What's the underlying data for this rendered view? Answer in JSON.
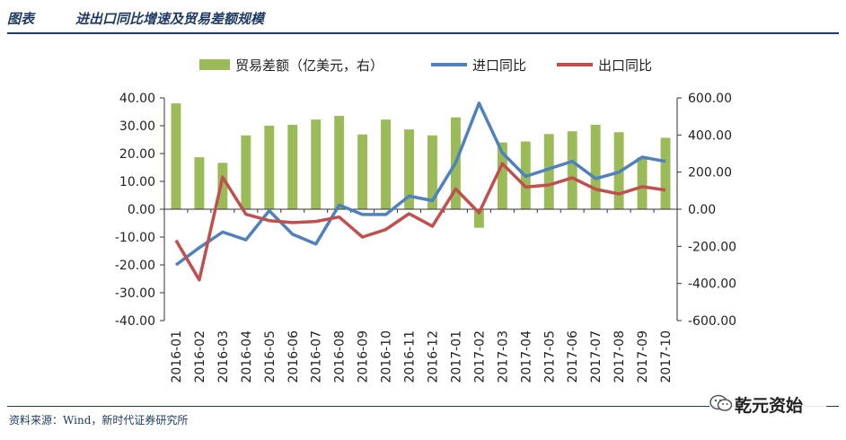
{
  "header": {
    "label": "图表",
    "title": "进出口同比增速及贸易差额规模"
  },
  "footer": {
    "source": "资料来源：Wind，新时代证券研究所"
  },
  "watermark": {
    "text": "乾元资始",
    "icon": "wechat-icon"
  },
  "chart_data": {
    "type": "bar+line",
    "categories": [
      "2016-01",
      "2016-02",
      "2016-03",
      "2016-04",
      "2016-05",
      "2016-06",
      "2016-07",
      "2016-08",
      "2016-09",
      "2016-10",
      "2016-11",
      "2016-12",
      "2017-01",
      "2017-02",
      "2017-03",
      "2017-04",
      "2017-05",
      "2017-06",
      "2017-07",
      "2017-08",
      "2017-09",
      "2017-10"
    ],
    "legend_position": "top",
    "grid": false,
    "left_axis": {
      "range": [
        -40,
        40
      ],
      "ticks": [
        40,
        30,
        20,
        10,
        0,
        -10,
        -20,
        -30,
        -40
      ],
      "tick_labels": [
        "40.00",
        "30.00",
        "20.00",
        "10.00",
        "0.00",
        "-10.00",
        "-20.00",
        "-30.00",
        "-40.00"
      ]
    },
    "right_axis": {
      "range": [
        -600,
        600
      ],
      "ticks": [
        600,
        400,
        200,
        0,
        -200,
        -400,
        -600
      ],
      "tick_labels": [
        "600.00",
        "400.00",
        "200.00",
        "0.00",
        "-200.00",
        "-400.00",
        "-600.00"
      ]
    },
    "series": [
      {
        "name": "贸易差额（亿美元，右）",
        "kind": "bar",
        "axis": "right",
        "color": "#9bbb59",
        "values": [
          570,
          280,
          250,
          398,
          450,
          455,
          483,
          503,
          403,
          483,
          430,
          398,
          495,
          -100,
          360,
          365,
          405,
          420,
          455,
          415,
          280,
          385
        ]
      },
      {
        "name": "进口同比",
        "kind": "line",
        "axis": "left",
        "color": "#4f81bd",
        "values": [
          -20.0,
          -13.8,
          -8.2,
          -11.0,
          -0.5,
          -9.0,
          -12.5,
          1.5,
          -1.9,
          -1.9,
          4.7,
          3.1,
          16.7,
          38.1,
          20.3,
          11.8,
          14.5,
          17.2,
          11.0,
          13.3,
          18.7,
          17.2
        ]
      },
      {
        "name": "出口同比",
        "kind": "line",
        "axis": "left",
        "color": "#c0504d",
        "values": [
          -11.2,
          -25.4,
          11.5,
          -1.8,
          -4.1,
          -4.8,
          -4.4,
          -2.8,
          -10.0,
          -7.3,
          -1.6,
          -6.1,
          7.3,
          -1.3,
          16.4,
          8.0,
          8.7,
          11.3,
          7.2,
          5.5,
          8.1,
          6.9
        ]
      }
    ]
  }
}
